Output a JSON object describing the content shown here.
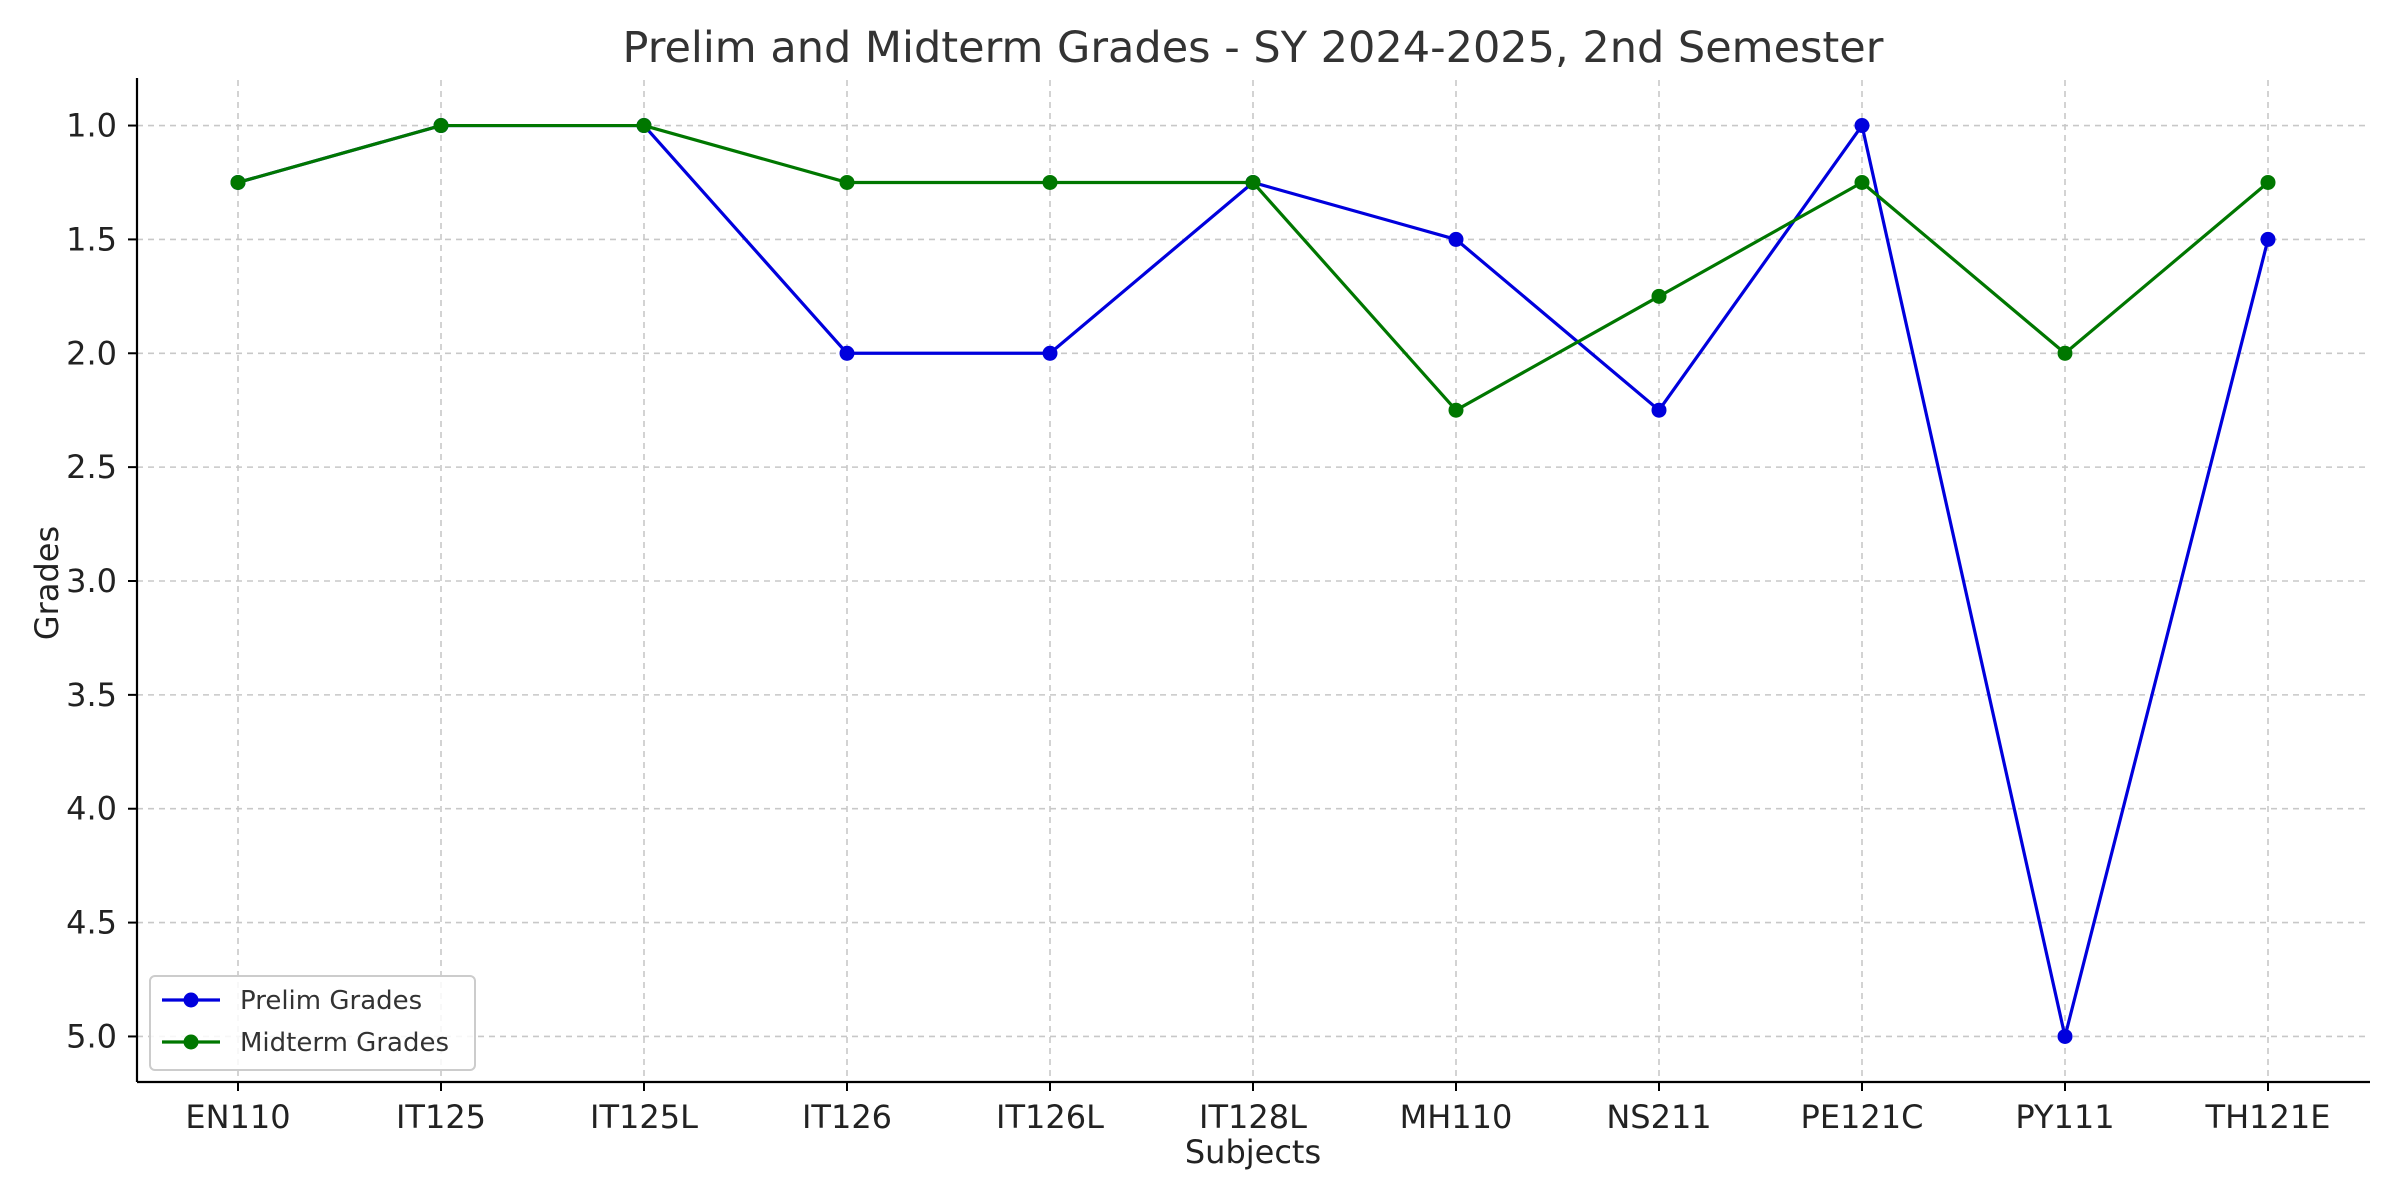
{
  "chart_data": {
    "type": "line",
    "title": "Prelim and Midterm Grades - SY 2024-2025, 2nd Semester",
    "xlabel": "Subjects",
    "ylabel": "Grades",
    "categories": [
      "EN110",
      "IT125",
      "IT125L",
      "IT126",
      "IT126L",
      "IT128L",
      "MH110",
      "NS211",
      "PE121C",
      "PY111",
      "TH121E"
    ],
    "ylim": [
      0.8,
      5.2
    ],
    "y_inverted": true,
    "yticks": [
      1.0,
      1.5,
      2.0,
      2.5,
      3.0,
      3.5,
      4.0,
      4.5,
      5.0
    ],
    "ytick_labels": [
      "1.0",
      "1.5",
      "2.0",
      "2.5",
      "3.0",
      "3.5",
      "4.0",
      "4.5",
      "5.0"
    ],
    "grid": true,
    "legend_position": "bottom-left",
    "series": [
      {
        "name": "Prelim Grades",
        "color": "#0000dd",
        "marker": "circle",
        "values": [
          1.25,
          1.0,
          1.0,
          2.0,
          2.0,
          1.25,
          1.5,
          2.25,
          1.0,
          5.0,
          1.5
        ]
      },
      {
        "name": "Midterm Grades",
        "color": "#007700",
        "marker": "circle",
        "values": [
          1.25,
          1.0,
          1.0,
          1.25,
          1.25,
          1.25,
          2.25,
          1.75,
          1.25,
          2.0,
          1.25
        ]
      }
    ]
  }
}
